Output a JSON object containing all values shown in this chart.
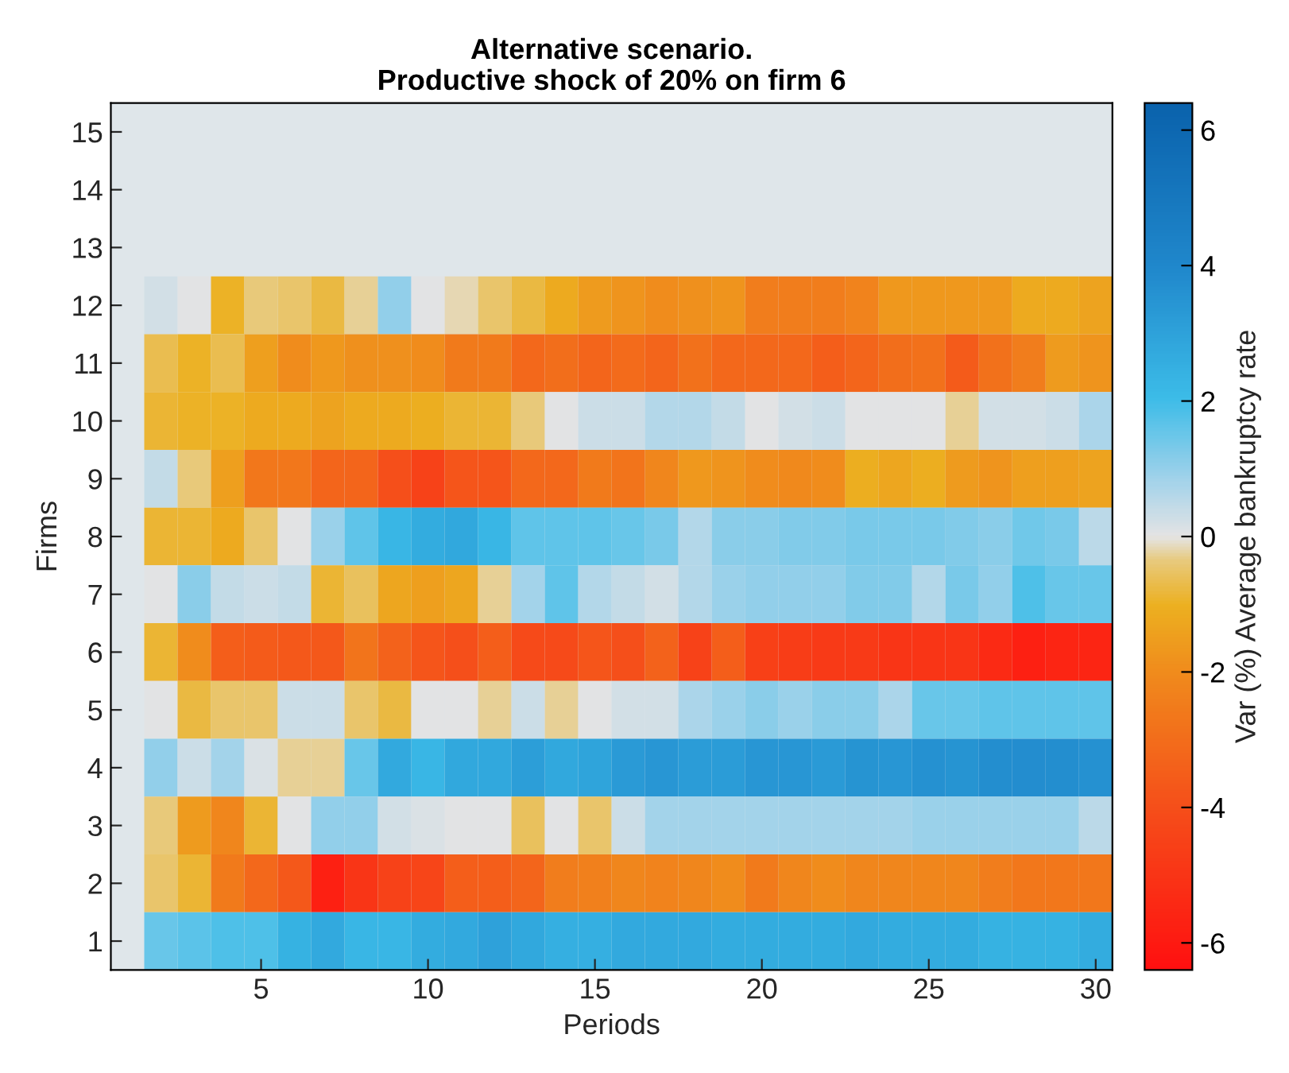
{
  "chart_data": {
    "type": "heatmap",
    "title": "Alternative scenario.\nProductive shock of 20% on firm 6",
    "xlabel": "Periods",
    "ylabel": "Firms",
    "clabel": "Var (%) Average bankruptcy rate",
    "categories": [
      null,
      null,
      null,
      null,
      "5",
      null,
      null,
      null,
      null,
      "10",
      null,
      null,
      null,
      null,
      "15",
      null,
      null,
      null,
      null,
      "20",
      null,
      null,
      null,
      null,
      "25",
      null,
      null,
      null,
      null,
      "30"
    ],
    "y_categories": [
      "15",
      "14",
      "13",
      "12",
      "11",
      "10",
      "9",
      "8",
      "7",
      "6",
      "5",
      "4",
      "3",
      "2",
      "1"
    ],
    "clim": [
      -6.4,
      6.4
    ],
    "cticks": [
      -6,
      -4,
      -2,
      0,
      2,
      4,
      6
    ],
    "cells": [
      [
        null,
        null,
        null,
        null,
        null,
        null,
        null,
        null,
        null,
        null,
        null,
        null,
        null,
        null,
        null,
        null,
        null,
        null,
        null,
        null,
        null,
        null,
        null,
        null,
        null,
        null,
        null,
        null,
        null,
        null
      ],
      [
        null,
        null,
        null,
        null,
        null,
        null,
        null,
        null,
        null,
        null,
        null,
        null,
        null,
        null,
        null,
        null,
        null,
        null,
        null,
        null,
        null,
        null,
        null,
        null,
        null,
        null,
        null,
        null,
        null,
        null
      ],
      [
        null,
        null,
        null,
        null,
        null,
        null,
        null,
        null,
        null,
        null,
        null,
        null,
        null,
        null,
        null,
        null,
        null,
        null,
        null,
        null,
        null,
        null,
        null,
        null,
        null,
        null,
        null,
        null,
        null,
        null
      ],
      [
        null,
        0.2,
        0,
        -1,
        -0.4,
        -0.5,
        -0.8,
        -0.3,
        1,
        0,
        -0.2,
        -0.5,
        -0.8,
        -1.2,
        -1.6,
        -1.8,
        -2,
        -1.9,
        -1.8,
        -2.5,
        -2.5,
        -2.5,
        -2.3,
        -1.7,
        -1.7,
        -1.7,
        -1.7,
        -1.2,
        -1.2,
        -1.4
      ],
      [
        null,
        -0.7,
        -1,
        -0.7,
        -1.5,
        -2,
        -1.7,
        -1.9,
        -1.9,
        -2,
        -2.6,
        -2.6,
        -3.2,
        -3,
        -3.3,
        -3.1,
        -3.3,
        -2.9,
        -3.2,
        -3.2,
        -3.2,
        -3.5,
        -3.3,
        -3,
        -2.9,
        -3.6,
        -2.9,
        -2.5,
        -1.6,
        -1.8
      ],
      [
        null,
        -0.9,
        -1,
        -1,
        -1.2,
        -1.2,
        -1.4,
        -1.2,
        -1.2,
        -1.1,
        -0.9,
        -0.9,
        -0.4,
        0,
        0.3,
        0.3,
        0.6,
        0.6,
        0.4,
        0,
        0.2,
        0.3,
        0,
        0,
        0,
        -0.3,
        0.2,
        0.2,
        0.3,
        0.7
      ],
      [
        null,
        0.4,
        -0.4,
        -1.5,
        -2.7,
        -2.7,
        -3.3,
        -3.3,
        -4,
        -4.5,
        -3.8,
        -3.8,
        -3.2,
        -3.2,
        -2.6,
        -2.8,
        -2.2,
        -1.7,
        -1.8,
        -2,
        -2.1,
        -2,
        -1.1,
        -1.3,
        -1.1,
        -1.6,
        -1.8,
        -1.5,
        -1.5,
        -1.4
      ],
      [
        null,
        -0.9,
        -0.9,
        -1.2,
        -0.5,
        0,
        0.9,
        1.6,
        2.3,
        2.6,
        2.8,
        2.3,
        1.6,
        1.6,
        1.6,
        1.5,
        1.3,
        0.6,
        1.1,
        1.1,
        1.2,
        1.2,
        1.3,
        1.3,
        1.3,
        1.2,
        1.1,
        1.4,
        1.3,
        0.5
      ],
      [
        null,
        0,
        1.1,
        0.4,
        0.3,
        0.4,
        -0.9,
        -0.6,
        -1.3,
        -1.5,
        -1.3,
        -0.3,
        0.8,
        1.6,
        0.6,
        0.4,
        0.2,
        0.6,
        0.9,
        1,
        1,
        1,
        1.2,
        1.2,
        0.6,
        1.3,
        1,
        1.8,
        1.5,
        1.5
      ],
      [
        null,
        -0.9,
        -2,
        -3.5,
        -3.6,
        -3.7,
        -3.7,
        -2.8,
        -3.4,
        -3.8,
        -4,
        -3.5,
        -4.2,
        -4.2,
        -3.8,
        -4,
        -3.4,
        -4.5,
        -3.5,
        -4.6,
        -4.7,
        -4.8,
        -4.8,
        -5,
        -5,
        -5,
        -5.4,
        -5.8,
        -5.6,
        -5.6
      ],
      [
        null,
        0,
        -0.8,
        -0.5,
        -0.5,
        0.3,
        0.3,
        -0.5,
        -0.8,
        0,
        0,
        -0.3,
        0.3,
        -0.3,
        0,
        0.2,
        0.2,
        0.7,
        0.9,
        1.1,
        0.9,
        1.1,
        1.1,
        0.7,
        1.5,
        1.5,
        1.6,
        1.6,
        1.6,
        1.6
      ],
      [
        null,
        1,
        0.3,
        0.8,
        0.1,
        -0.3,
        -0.3,
        1.5,
        2.7,
        2.3,
        2.8,
        2.8,
        3.1,
        2.8,
        2.9,
        3.3,
        3.4,
        3.2,
        3.2,
        3.4,
        3.4,
        3.3,
        3.5,
        3.4,
        3.6,
        3.5,
        3.7,
        3.8,
        3.7,
        3.6
      ],
      [
        null,
        -0.4,
        -1.6,
        -2.2,
        -0.9,
        0,
        1,
        1,
        0.2,
        0.1,
        0,
        0,
        -0.6,
        0,
        -0.5,
        0.3,
        0.8,
        0.8,
        0.8,
        0.8,
        0.8,
        0.8,
        0.8,
        0.8,
        0.9,
        0.9,
        0.9,
        0.9,
        0.9,
        0.5
      ],
      [
        null,
        -0.5,
        -0.9,
        -2.6,
        -3.2,
        -3.7,
        -5.8,
        -5,
        -4.5,
        -4.4,
        -3.5,
        -3.5,
        -3.3,
        -2.5,
        -2.4,
        -2.2,
        -2.3,
        -2.2,
        -2,
        -2.6,
        -2.2,
        -2,
        -2.2,
        -2.2,
        -2.2,
        -2.2,
        -2.5,
        -2.7,
        -2.7,
        -2.7
      ],
      [
        null,
        1.5,
        1.7,
        1.8,
        1.8,
        2.4,
        2.7,
        2.3,
        2.3,
        2.6,
        2.7,
        3,
        2.8,
        2.5,
        2.5,
        2.7,
        2.7,
        2.7,
        2.6,
        2.6,
        2.6,
        2.6,
        2.7,
        2.6,
        2.6,
        2.6,
        2.4,
        2.4,
        2.4,
        2.6
      ]
    ]
  }
}
